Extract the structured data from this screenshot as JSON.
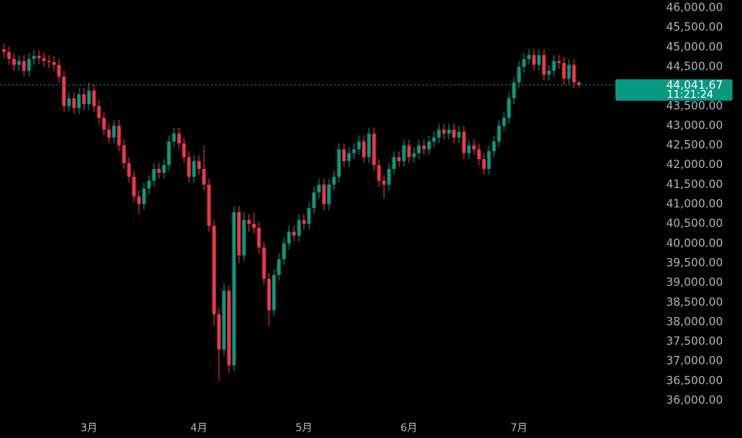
{
  "chart_data": {
    "type": "candlestick",
    "categories": [
      null,
      null,
      null,
      null,
      null,
      null,
      null,
      null,
      null,
      null,
      null,
      null,
      null,
      null,
      null,
      null,
      null,
      "3月",
      null,
      null,
      null,
      null,
      null,
      null,
      null,
      null,
      null,
      null,
      null,
      null,
      null,
      null,
      null,
      null,
      null,
      null,
      null,
      null,
      null,
      "4月",
      null,
      null,
      null,
      null,
      null,
      null,
      null,
      null,
      null,
      null,
      null,
      null,
      null,
      null,
      null,
      null,
      null,
      null,
      null,
      null,
      "5月",
      null,
      null,
      null,
      null,
      null,
      null,
      null,
      null,
      null,
      null,
      null,
      null,
      null,
      null,
      null,
      null,
      null,
      null,
      null,
      null,
      "6月",
      null,
      null,
      null,
      null,
      null,
      null,
      null,
      null,
      null,
      null,
      null,
      null,
      null,
      null,
      null,
      null,
      null,
      null,
      null,
      null,
      null,
      "7月",
      null,
      null,
      null,
      null,
      null,
      null,
      null,
      null,
      null,
      null,
      null,
      null
    ],
    "open": [
      44950,
      44880,
      44700,
      44550,
      44650,
      44400,
      44700,
      44780,
      44720,
      44650,
      44620,
      44550,
      44250,
      43500,
      43700,
      43450,
      43800,
      43550,
      43900,
      43500,
      43200,
      42900,
      42700,
      43000,
      42500,
      42050,
      41700,
      41200,
      41000,
      41400,
      41600,
      41900,
      41800,
      42000,
      42600,
      42800,
      42550,
      42200,
      41700,
      42100,
      41900,
      41500,
      40450,
      38200,
      37300,
      38800,
      36900,
      40800,
      39700,
      40600,
      40500,
      40400,
      39900,
      39100,
      38300,
      39200,
      39600,
      40000,
      40300,
      40200,
      40600,
      40500,
      40900,
      41300,
      41500,
      41000,
      41500,
      41700,
      42400,
      42100,
      42300,
      42400,
      42600,
      42200,
      42800,
      42000,
      41600,
      41500,
      41900,
      42200,
      42100,
      42500,
      42200,
      42300,
      42500,
      42400,
      42600,
      42700,
      42900,
      42800,
      42900,
      42700,
      42850,
      42300,
      42500,
      42400,
      42150,
      41900,
      42350,
      42600,
      43000,
      43200,
      43700,
      44100,
      44500,
      44700,
      44800,
      44550,
      44800,
      44300,
      44400,
      44650,
      44600,
      44200,
      44550,
      44100
    ],
    "high": [
      45100,
      45030,
      44850,
      44800,
      44800,
      44850,
      44930,
      44930,
      44870,
      44800,
      44770,
      44700,
      44400,
      43850,
      43850,
      43950,
      43950,
      44100,
      44050,
      43650,
      43350,
      43050,
      43150,
      43150,
      42650,
      42200,
      41850,
      41350,
      41550,
      41750,
      42050,
      42050,
      42150,
      42750,
      42950,
      42950,
      42700,
      42350,
      42250,
      42250,
      42500,
      41650,
      40600,
      38350,
      39000,
      38950,
      40950,
      40950,
      40800,
      40750,
      40800,
      40550,
      40050,
      39250,
      39350,
      39750,
      40150,
      40450,
      40450,
      40750,
      40750,
      41050,
      41450,
      41650,
      41650,
      41650,
      41850,
      42550,
      42550,
      42450,
      42550,
      42750,
      42750,
      42950,
      42950,
      42150,
      41750,
      42050,
      42350,
      42350,
      42650,
      42650,
      42450,
      42650,
      42650,
      42750,
      42850,
      43050,
      43050,
      43050,
      43050,
      43000,
      43000,
      42650,
      42650,
      42550,
      42300,
      42500,
      42750,
      43150,
      43350,
      43850,
      44250,
      44650,
      44850,
      44950,
      44950,
      44950,
      44950,
      44550,
      44800,
      44800,
      44750,
      44700,
      44700,
      44150
    ],
    "low": [
      44730,
      44550,
      44400,
      44400,
      44250,
      44250,
      44550,
      44570,
      44500,
      44470,
      44400,
      44100,
      43350,
      43350,
      43300,
      43300,
      43400,
      43400,
      43350,
      43050,
      42750,
      42550,
      42550,
      42350,
      41900,
      41550,
      41050,
      40750,
      40850,
      41250,
      41450,
      41650,
      41650,
      41850,
      42450,
      42400,
      42050,
      41550,
      41550,
      41750,
      41350,
      40300,
      37900,
      36500,
      37150,
      36700,
      36750,
      39500,
      39550,
      40300,
      40250,
      39750,
      38950,
      37900,
      38150,
      39050,
      39450,
      39850,
      40050,
      40050,
      40350,
      40350,
      40750,
      41150,
      40850,
      40850,
      41350,
      41550,
      41950,
      41950,
      42150,
      42250,
      42050,
      42050,
      41850,
      41450,
      41150,
      41350,
      41750,
      41950,
      41950,
      42050,
      42050,
      42150,
      42250,
      42250,
      42450,
      42550,
      42650,
      42650,
      42550,
      42550,
      42150,
      42150,
      42250,
      42000,
      41750,
      41750,
      42200,
      42450,
      42850,
      43050,
      43550,
      43950,
      44350,
      44550,
      44400,
      44400,
      44150,
      44150,
      44250,
      44450,
      44050,
      44050,
      43950,
      43980
    ],
    "close": [
      44880,
      44700,
      44550,
      44650,
      44400,
      44700,
      44780,
      44720,
      44650,
      44620,
      44550,
      44250,
      43500,
      43700,
      43450,
      43800,
      43550,
      43900,
      43500,
      43200,
      42900,
      42700,
      43000,
      42500,
      42050,
      41700,
      41200,
      41000,
      41400,
      41600,
      41900,
      41800,
      42000,
      42600,
      42800,
      42550,
      42200,
      41700,
      42100,
      41900,
      41500,
      40450,
      38200,
      37300,
      38800,
      36900,
      40800,
      39700,
      40600,
      40500,
      40400,
      39900,
      39100,
      38300,
      39200,
      39600,
      40000,
      40300,
      40200,
      40600,
      40500,
      40900,
      41300,
      41500,
      41000,
      41500,
      41700,
      42400,
      42100,
      42300,
      42400,
      42600,
      42200,
      42800,
      42000,
      41600,
      41500,
      41900,
      42200,
      42100,
      42500,
      42200,
      42300,
      42500,
      42400,
      42600,
      42700,
      42900,
      42800,
      42900,
      42700,
      42850,
      42300,
      42500,
      42400,
      42150,
      41900,
      42350,
      42600,
      43000,
      43200,
      43700,
      44100,
      44500,
      44700,
      44800,
      44550,
      44800,
      44300,
      44400,
      44650,
      44600,
      44200,
      44550,
      44100,
      44041.67
    ],
    "up_color": "#089981",
    "down_color": "#f23645",
    "ylim": [
      36000,
      46000
    ],
    "yticks": [
      {
        "value": 36000,
        "label": "36,000.00"
      },
      {
        "value": 36500,
        "label": "36,500.00"
      },
      {
        "value": 37000,
        "label": "37,000.00"
      },
      {
        "value": 37500,
        "label": "37,500.00"
      },
      {
        "value": 38000,
        "label": "38,000.00"
      },
      {
        "value": 38500,
        "label": "38,500.00"
      },
      {
        "value": 39000,
        "label": "39,000.00"
      },
      {
        "value": 39500,
        "label": "39,500.00"
      },
      {
        "value": 40000,
        "label": "40,000.00"
      },
      {
        "value": 40500,
        "label": "40,500.00"
      },
      {
        "value": 41000,
        "label": "41,000.00"
      },
      {
        "value": 41500,
        "label": "41,500.00"
      },
      {
        "value": 42000,
        "label": "42,000.00"
      },
      {
        "value": 42500,
        "label": "42,500.00"
      },
      {
        "value": 43000,
        "label": "43,000.00"
      },
      {
        "value": 43500,
        "label": "43,500.00"
      },
      {
        "value": 44500,
        "label": "44,500.00"
      },
      {
        "value": 45000,
        "label": "45,000.00"
      },
      {
        "value": 45500,
        "label": "45,500.00"
      },
      {
        "value": 46000,
        "label": "46,000.00"
      }
    ],
    "last_price": {
      "value": 44041.67,
      "label": "44,041.67"
    },
    "countdown": "11:21:24"
  }
}
